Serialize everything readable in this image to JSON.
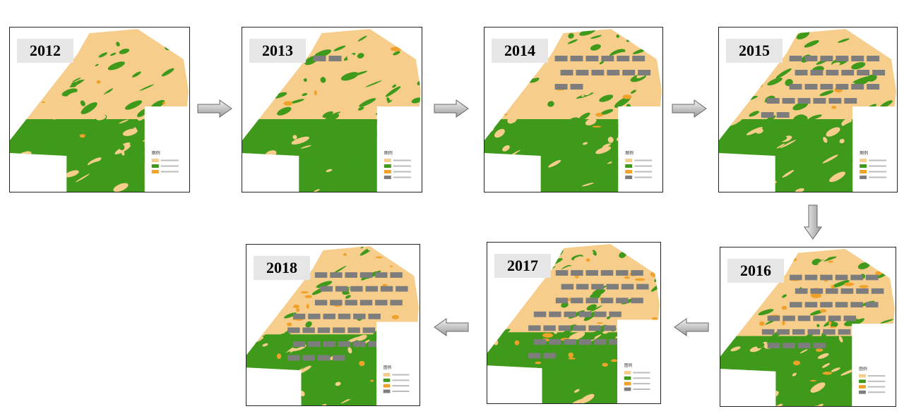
{
  "panels": [
    {
      "year": "2012",
      "legend_title": "图例"
    },
    {
      "year": "2013",
      "legend_title": "图例"
    },
    {
      "year": "2014",
      "legend_title": "图例"
    },
    {
      "year": "2015",
      "legend_title": "图例"
    },
    {
      "year": "2016",
      "legend_title": "图例"
    },
    {
      "year": "2017",
      "legend_title": "图例"
    },
    {
      "year": "2018",
      "legend_title": "图例"
    }
  ]
}
